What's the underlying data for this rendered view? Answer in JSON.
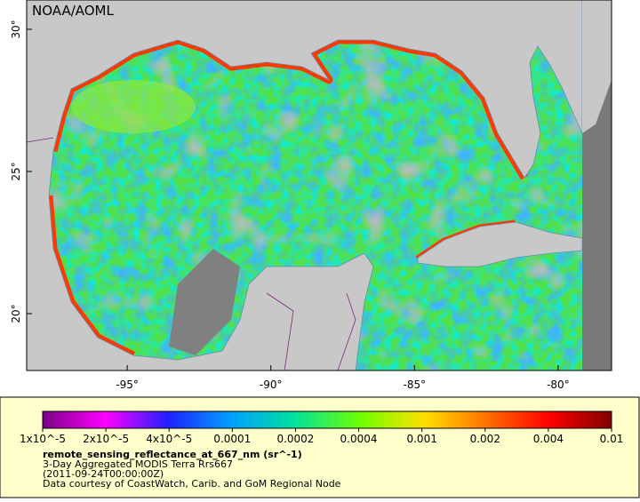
{
  "header": {
    "credit": "NOAA/AOML"
  },
  "map": {
    "lon_range": [
      -98.5,
      -78.14
    ],
    "lat_range": [
      18.0,
      31.03
    ],
    "lon_ticks": [
      {
        "value": -95,
        "label": "-95°"
      },
      {
        "value": -90,
        "label": "-90°"
      },
      {
        "value": -85,
        "label": "-85°"
      },
      {
        "value": -80,
        "label": "-80°"
      }
    ],
    "lat_ticks": [
      {
        "value": 30,
        "label": "30°"
      },
      {
        "value": 25,
        "label": "25°"
      },
      {
        "value": 20,
        "label": "20°"
      }
    ]
  },
  "colorbar": {
    "ticks": [
      {
        "value": 1e-05,
        "label": "1x10^-5"
      },
      {
        "value": 2e-05,
        "label": "2x10^-5"
      },
      {
        "value": 4e-05,
        "label": "4x10^-5"
      },
      0.0001,
      0.0002,
      0.0004,
      0.001,
      0.002,
      0.004,
      0.01
    ]
  },
  "legend": {
    "variable": "remote_sensing_reflectance_at_667_nm (sr^-1)",
    "product": "3-Day Aggregated MODIS Terra Rrs667",
    "time": "(2011-09-24T00:00:00Z)",
    "source": "Data courtesy of CoastWatch, Carib. and GoM Regional Node"
  }
}
